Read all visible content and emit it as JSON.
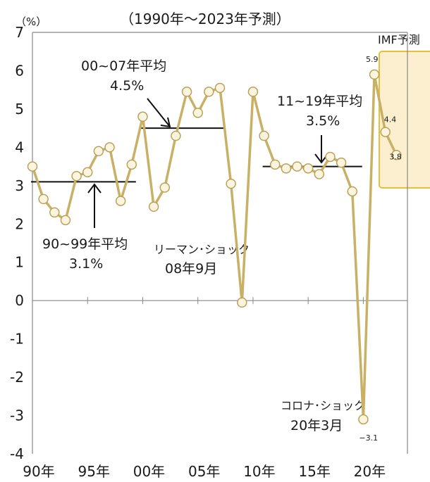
{
  "chart_data": {
    "type": "line",
    "subtitle": "（1990年～2023年予測）",
    "ylabel": "（%）",
    "ylim": [
      -4,
      7
    ],
    "yticks": [
      -4,
      -3,
      -2,
      -1,
      0,
      1,
      2,
      3,
      4,
      5,
      6,
      7
    ],
    "xlim": [
      1990,
      2024
    ],
    "xtick_labels": [
      {
        "x": 1990,
        "label": "90年"
      },
      {
        "x": 1995,
        "label": "95年"
      },
      {
        "x": 2000,
        "label": "00年"
      },
      {
        "x": 2005,
        "label": "05年"
      },
      {
        "x": 2010,
        "label": "10年"
      },
      {
        "x": 2015,
        "label": "15年"
      },
      {
        "x": 2020,
        "label": "20年"
      }
    ],
    "series": [
      {
        "color": "#c8b064",
        "x": [
          1990,
          1991,
          1992,
          1993,
          1994,
          1995,
          1996,
          1997,
          1998,
          1999,
          2000,
          2001,
          2002,
          2003,
          2004,
          2005,
          2006,
          2007,
          2008,
          2009,
          2010,
          2011,
          2012,
          2013,
          2014,
          2015,
          2016,
          2017,
          2018,
          2019,
          2020,
          2021,
          2022,
          2023
        ],
        "values": [
          3.5,
          2.65,
          2.3,
          2.1,
          3.25,
          3.35,
          3.9,
          4.0,
          2.6,
          3.55,
          4.8,
          2.45,
          2.95,
          4.3,
          5.45,
          4.9,
          5.45,
          5.55,
          3.05,
          -0.05,
          5.45,
          4.3,
          3.55,
          3.45,
          3.5,
          3.45,
          3.3,
          3.75,
          3.6,
          2.85,
          -3.1,
          5.9,
          4.4,
          3.8
        ]
      }
    ],
    "averages": [
      {
        "label": "90~99年平均",
        "value_label": "3.1%",
        "value": 3.1,
        "from": 1990,
        "to": 1999
      },
      {
        "label": "00~07年平均",
        "value_label": "4.5%",
        "value": 4.5,
        "from": 2000,
        "to": 2007
      },
      {
        "label": "11~19年平均",
        "value_label": "3.5%",
        "value": 3.5,
        "from": 2011,
        "to": 2019
      }
    ],
    "annotations": [
      {
        "line1": "リーマン･ショック",
        "line2": "08年9月"
      },
      {
        "line1": "コロナ･ショック",
        "line2": "20年3月"
      }
    ],
    "forecast": {
      "label": "IMF予測",
      "fill": "#fcefd0",
      "stroke": "#e8bf3a"
    },
    "data_labels": [
      {
        "x": 2021,
        "label": "5.9"
      },
      {
        "x": 2022,
        "label": "4.4"
      },
      {
        "x": 2023,
        "label": "3.8"
      },
      {
        "x": 2020,
        "label": "−3.1"
      }
    ],
    "grid": false,
    "colors": {
      "line": "#c8b064",
      "marker_fill": "#fbf5e0",
      "marker_stroke": "#b9a258",
      "axis": "#888888"
    }
  }
}
